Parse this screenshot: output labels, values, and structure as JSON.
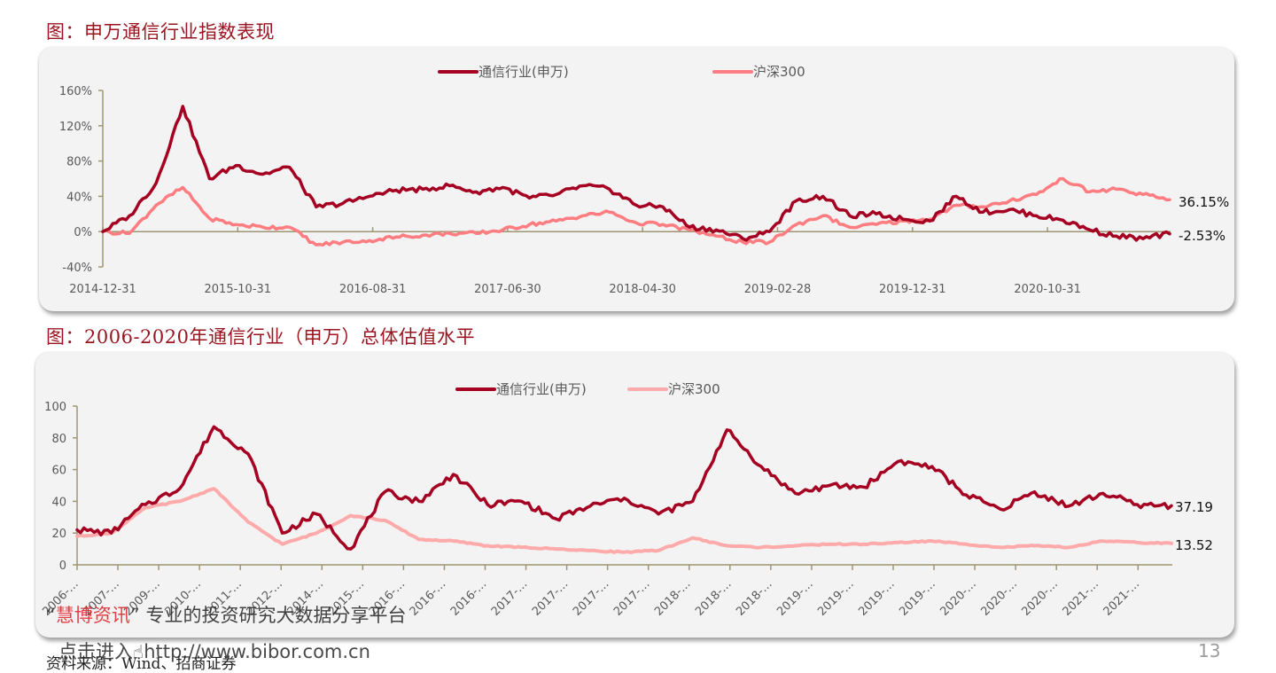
{
  "figure1": {
    "title": "图：申万通信行业指数表现",
    "legend": [
      {
        "label": "通信行业(申万)",
        "color": "#a50021"
      },
      {
        "label": "沪深300",
        "color": "#ff7c80"
      }
    ],
    "end_labels": {
      "hs300": "36.15%",
      "telecom": "-2.53%"
    }
  },
  "figure2": {
    "title": "图：2006-2020年通信行业（申万）总体估值水平",
    "legend": [
      {
        "label": "通信行业(申万)",
        "color": "#a50021"
      },
      {
        "label": "沪深300",
        "color": "#ffaaaa"
      }
    ],
    "end_labels": {
      "telecom": "37.19",
      "hs300": "13.52"
    }
  },
  "watermark": {
    "open_quote": "“",
    "brand": "慧博资讯",
    "close_quote": "”",
    "tagline": "专业的投资研究大数据分享平台",
    "link_prefix": "点击进入",
    "url": "http://www.bibor.com.cn"
  },
  "footer": {
    "source": "资料来源：Wind、招商证券",
    "page_number": "13"
  },
  "chart_data": [
    {
      "type": "line",
      "title": "申万通信行业指数表现",
      "xlabel": "",
      "ylabel": "",
      "ylim": [
        -40,
        160
      ],
      "y_ticks": [
        "-40%",
        "0%",
        "40%",
        "80%",
        "120%",
        "160%"
      ],
      "x_ticks": [
        "2014-12-31",
        "2015-10-31",
        "2016-08-31",
        "2017-06-30",
        "2018-04-30",
        "2019-02-28",
        "2019-12-31",
        "2020-10-31"
      ],
      "legend_position": "top",
      "grid": false,
      "x": [
        "2014-12",
        "2015-02",
        "2015-04",
        "2015-06",
        "2015-07",
        "2015-08",
        "2015-10",
        "2015-12",
        "2016-02",
        "2016-04",
        "2016-06",
        "2016-08",
        "2016-10",
        "2016-12",
        "2017-02",
        "2017-04",
        "2017-06",
        "2017-08",
        "2017-10",
        "2017-12",
        "2018-02",
        "2018-04",
        "2018-06",
        "2018-08",
        "2018-10",
        "2018-12",
        "2019-02",
        "2019-04",
        "2019-06",
        "2019-08",
        "2019-10",
        "2019-12",
        "2020-02",
        "2020-04",
        "2020-06",
        "2020-08",
        "2020-10",
        "2020-12",
        "2021-02",
        "2021-04",
        "2021-06"
      ],
      "series": [
        {
          "name": "通信行业(申万)",
          "values": [
            0,
            18,
            55,
            142,
            60,
            75,
            65,
            73,
            28,
            32,
            40,
            47,
            48,
            52,
            45,
            50,
            38,
            42,
            52,
            48,
            30,
            28,
            5,
            2,
            -8,
            0,
            35,
            40,
            18,
            20,
            14,
            12,
            40,
            22,
            25,
            18,
            13,
            2,
            -5,
            -8,
            -2.53
          ]
        },
        {
          "name": "沪深300",
          "values": [
            0,
            -2,
            30,
            50,
            15,
            8,
            5,
            5,
            -15,
            -12,
            -10,
            -6,
            -4,
            -2,
            -2,
            2,
            8,
            12,
            18,
            22,
            10,
            8,
            2,
            -5,
            -12,
            -12,
            8,
            18,
            5,
            8,
            12,
            14,
            30,
            28,
            35,
            42,
            60,
            45,
            48,
            42,
            36.15
          ]
        }
      ]
    },
    {
      "type": "line",
      "title": "2006-2020年通信行业（申万）总体估值水平",
      "xlabel": "",
      "ylabel": "",
      "ylim": [
        0,
        100
      ],
      "y_ticks": [
        "0",
        "20",
        "40",
        "60",
        "80",
        "100"
      ],
      "x_ticks": [
        "2006-…",
        "2007-…",
        "2009-…",
        "2010-…",
        "2011-…",
        "2012-…",
        "2014-…",
        "2015-…",
        "2016-…",
        "2016-…",
        "2016-…",
        "2017-…",
        "2017-…",
        "2017-…",
        "2017-…",
        "2018-…",
        "2018-…",
        "2018-…",
        "2019-…",
        "2019-…",
        "2019-…",
        "2019-…",
        "2020-…",
        "2020-…",
        "2020-…",
        "2021-…",
        "2021-…"
      ],
      "legend_position": "top",
      "grid": false,
      "x": [
        "2006",
        "2006.5",
        "2007",
        "2007.5",
        "2008",
        "2008.5",
        "2009",
        "2009.5",
        "2010",
        "2010.5",
        "2011",
        "2011.5",
        "2012",
        "2012.5",
        "2013",
        "2013.5",
        "2014",
        "2014.5",
        "2015",
        "2015.3",
        "2015.6",
        "2016",
        "2016.5",
        "2017",
        "2017.5",
        "2018",
        "2018.5",
        "2019",
        "2019.5",
        "2020",
        "2020.5",
        "2021",
        "2021.5"
      ],
      "series": [
        {
          "name": "通信行业(申万)",
          "values": [
            22,
            20,
            38,
            48,
            87,
            70,
            20,
            32,
            10,
            46,
            40,
            57,
            38,
            40,
            29,
            37,
            42,
            32,
            40,
            85,
            62,
            45,
            50,
            49,
            65,
            62,
            44,
            35,
            46,
            37,
            45,
            38,
            37.19
          ]
        },
        {
          "name": "沪深300",
          "values": [
            18,
            20,
            36,
            40,
            48,
            27,
            13,
            20,
            31,
            28,
            16,
            15,
            12,
            11,
            10,
            9,
            8,
            9,
            17,
            12,
            11,
            12,
            13,
            13,
            14,
            15,
            13,
            11,
            12,
            11,
            15,
            14,
            13.52
          ]
        }
      ]
    }
  ]
}
